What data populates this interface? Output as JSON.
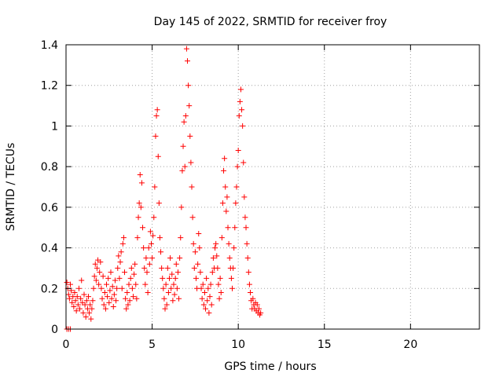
{
  "chart_data": {
    "type": "scatter",
    "title": "Day 145 of 2022, SRMTID for receiver froy",
    "xlabel": "GPS time / hours",
    "ylabel": "SRMTID / TECUs",
    "xlim": [
      0,
      24
    ],
    "ylim": [
      0,
      1.4
    ],
    "xticks": [
      0,
      5,
      10,
      15,
      20
    ],
    "xtick_labels": [
      "0",
      "5",
      "10",
      "15",
      "20"
    ],
    "yticks": [
      0,
      0.2,
      0.4,
      0.6,
      0.8,
      1.0,
      1.2,
      1.4
    ],
    "ytick_labels": [
      "0",
      "0.2",
      "0.4",
      "0.6",
      "0.8",
      "1",
      "1.2",
      "1.4"
    ],
    "grid": true,
    "marker": "+",
    "marker_color": "#ff0000",
    "series": [
      {
        "name": "SRMTID",
        "points": [
          [
            0.05,
            0.0
          ],
          [
            0.15,
            0.0
          ],
          [
            0.25,
            0.0
          ],
          [
            0.05,
            0.23
          ],
          [
            0.1,
            0.2
          ],
          [
            0.15,
            0.17
          ],
          [
            0.2,
            0.15
          ],
          [
            0.25,
            0.22
          ],
          [
            0.3,
            0.19
          ],
          [
            0.35,
            0.13
          ],
          [
            0.4,
            0.16
          ],
          [
            0.45,
            0.11
          ],
          [
            0.5,
            0.18
          ],
          [
            0.55,
            0.14
          ],
          [
            0.6,
            0.09
          ],
          [
            0.65,
            0.16
          ],
          [
            0.7,
            0.12
          ],
          [
            0.75,
            0.2
          ],
          [
            0.8,
            0.1
          ],
          [
            0.85,
            0.15
          ],
          [
            0.9,
            0.24
          ],
          [
            0.95,
            0.13
          ],
          [
            1.0,
            0.08
          ],
          [
            1.05,
            0.17
          ],
          [
            1.1,
            0.12
          ],
          [
            1.15,
            0.06
          ],
          [
            1.2,
            0.14
          ],
          [
            1.25,
            0.1
          ],
          [
            1.3,
            0.16
          ],
          [
            1.35,
            0.08
          ],
          [
            1.4,
            0.12
          ],
          [
            1.45,
            0.05
          ],
          [
            1.5,
            0.1
          ],
          [
            1.55,
            0.14
          ],
          [
            1.6,
            0.2
          ],
          [
            1.65,
            0.26
          ],
          [
            1.7,
            0.32
          ],
          [
            1.75,
            0.24
          ],
          [
            1.8,
            0.3
          ],
          [
            1.85,
            0.34
          ],
          [
            1.9,
            0.22
          ],
          [
            1.95,
            0.28
          ],
          [
            2.0,
            0.33
          ],
          [
            2.05,
            0.2
          ],
          [
            2.1,
            0.15
          ],
          [
            2.15,
            0.26
          ],
          [
            2.2,
            0.12
          ],
          [
            2.25,
            0.18
          ],
          [
            2.3,
            0.1
          ],
          [
            2.35,
            0.22
          ],
          [
            2.4,
            0.16
          ],
          [
            2.45,
            0.25
          ],
          [
            2.5,
            0.13
          ],
          [
            2.55,
            0.19
          ],
          [
            2.6,
            0.28
          ],
          [
            2.65,
            0.15
          ],
          [
            2.7,
            0.21
          ],
          [
            2.75,
            0.11
          ],
          [
            2.8,
            0.17
          ],
          [
            2.85,
            0.24
          ],
          [
            2.9,
            0.14
          ],
          [
            2.95,
            0.2
          ],
          [
            3.0,
            0.3
          ],
          [
            3.05,
            0.36
          ],
          [
            3.1,
            0.25
          ],
          [
            3.15,
            0.33
          ],
          [
            3.2,
            0.38
          ],
          [
            3.25,
            0.2
          ],
          [
            3.3,
            0.42
          ],
          [
            3.35,
            0.45
          ],
          [
            3.4,
            0.28
          ],
          [
            3.45,
            0.15
          ],
          [
            3.5,
            0.1
          ],
          [
            3.55,
            0.18
          ],
          [
            3.6,
            0.12
          ],
          [
            3.65,
            0.22
          ],
          [
            3.7,
            0.14
          ],
          [
            3.75,
            0.25
          ],
          [
            3.8,
            0.3
          ],
          [
            3.85,
            0.2
          ],
          [
            3.9,
            0.16
          ],
          [
            3.95,
            0.27
          ],
          [
            4.0,
            0.32
          ],
          [
            4.05,
            0.22
          ],
          [
            4.1,
            0.15
          ],
          [
            4.15,
            0.45
          ],
          [
            4.2,
            0.55
          ],
          [
            4.25,
            0.62
          ],
          [
            4.3,
            0.76
          ],
          [
            4.35,
            0.6
          ],
          [
            4.4,
            0.72
          ],
          [
            4.45,
            0.5
          ],
          [
            4.5,
            0.4
          ],
          [
            4.55,
            0.3
          ],
          [
            4.6,
            0.22
          ],
          [
            4.65,
            0.35
          ],
          [
            4.7,
            0.28
          ],
          [
            4.75,
            0.18
          ],
          [
            4.8,
            0.4
          ],
          [
            4.85,
            0.32
          ],
          [
            4.9,
            0.48
          ],
          [
            4.95,
            0.42
          ],
          [
            5.0,
            0.35
          ],
          [
            5.05,
            0.46
          ],
          [
            5.1,
            0.55
          ],
          [
            5.15,
            0.7
          ],
          [
            5.2,
            0.95
          ],
          [
            5.25,
            1.05
          ],
          [
            5.3,
            1.08
          ],
          [
            5.35,
            0.85
          ],
          [
            5.4,
            0.62
          ],
          [
            5.45,
            0.45
          ],
          [
            5.5,
            0.38
          ],
          [
            5.55,
            0.3
          ],
          [
            5.6,
            0.25
          ],
          [
            5.65,
            0.2
          ],
          [
            5.7,
            0.15
          ],
          [
            5.75,
            0.1
          ],
          [
            5.8,
            0.22
          ],
          [
            5.85,
            0.12
          ],
          [
            5.9,
            0.3
          ],
          [
            5.95,
            0.18
          ],
          [
            6.0,
            0.25
          ],
          [
            6.05,
            0.35
          ],
          [
            6.1,
            0.2
          ],
          [
            6.15,
            0.27
          ],
          [
            6.2,
            0.14
          ],
          [
            6.25,
            0.22
          ],
          [
            6.3,
            0.17
          ],
          [
            6.35,
            0.25
          ],
          [
            6.4,
            0.32
          ],
          [
            6.45,
            0.2
          ],
          [
            6.5,
            0.28
          ],
          [
            6.55,
            0.15
          ],
          [
            6.6,
            0.35
          ],
          [
            6.65,
            0.45
          ],
          [
            6.7,
            0.6
          ],
          [
            6.75,
            0.78
          ],
          [
            6.8,
            0.9
          ],
          [
            6.85,
            1.02
          ],
          [
            6.9,
            0.8
          ],
          [
            6.95,
            1.05
          ],
          [
            7.0,
            1.38
          ],
          [
            7.05,
            1.32
          ],
          [
            7.1,
            1.2
          ],
          [
            7.15,
            1.1
          ],
          [
            7.2,
            0.95
          ],
          [
            7.25,
            0.82
          ],
          [
            7.3,
            0.7
          ],
          [
            7.35,
            0.55
          ],
          [
            7.4,
            0.42
          ],
          [
            7.45,
            0.3
          ],
          [
            7.5,
            0.38
          ],
          [
            7.55,
            0.25
          ],
          [
            7.6,
            0.2
          ],
          [
            7.65,
            0.32
          ],
          [
            7.7,
            0.47
          ],
          [
            7.75,
            0.4
          ],
          [
            7.8,
            0.28
          ],
          [
            7.85,
            0.2
          ],
          [
            7.9,
            0.15
          ],
          [
            7.95,
            0.22
          ],
          [
            8.0,
            0.12
          ],
          [
            8.05,
            0.18
          ],
          [
            8.1,
            0.1
          ],
          [
            8.15,
            0.25
          ],
          [
            8.2,
            0.14
          ],
          [
            8.25,
            0.2
          ],
          [
            8.3,
            0.08
          ],
          [
            8.35,
            0.16
          ],
          [
            8.4,
            0.22
          ],
          [
            8.45,
            0.12
          ],
          [
            8.5,
            0.28
          ],
          [
            8.55,
            0.35
          ],
          [
            8.6,
            0.3
          ],
          [
            8.65,
            0.4
          ],
          [
            8.7,
            0.42
          ],
          [
            8.75,
            0.36
          ],
          [
            8.8,
            0.3
          ],
          [
            8.85,
            0.22
          ],
          [
            8.9,
            0.15
          ],
          [
            8.95,
            0.25
          ],
          [
            9.0,
            0.18
          ],
          [
            9.05,
            0.45
          ],
          [
            9.1,
            0.62
          ],
          [
            9.15,
            0.78
          ],
          [
            9.2,
            0.84
          ],
          [
            9.25,
            0.7
          ],
          [
            9.3,
            0.58
          ],
          [
            9.35,
            0.65
          ],
          [
            9.4,
            0.5
          ],
          [
            9.45,
            0.42
          ],
          [
            9.5,
            0.35
          ],
          [
            9.55,
            0.3
          ],
          [
            9.6,
            0.25
          ],
          [
            9.65,
            0.2
          ],
          [
            9.7,
            0.3
          ],
          [
            9.75,
            0.4
          ],
          [
            9.8,
            0.5
          ],
          [
            9.85,
            0.62
          ],
          [
            9.9,
            0.7
          ],
          [
            9.95,
            0.8
          ],
          [
            10.0,
            0.88
          ],
          [
            10.05,
            1.05
          ],
          [
            10.1,
            1.12
          ],
          [
            10.15,
            1.18
          ],
          [
            10.2,
            1.08
          ],
          [
            10.25,
            1.0
          ],
          [
            10.3,
            0.82
          ],
          [
            10.35,
            0.65
          ],
          [
            10.4,
            0.55
          ],
          [
            10.45,
            0.5
          ],
          [
            10.5,
            0.42
          ],
          [
            10.55,
            0.35
          ],
          [
            10.6,
            0.28
          ],
          [
            10.65,
            0.22
          ],
          [
            10.7,
            0.18
          ],
          [
            10.75,
            0.14
          ],
          [
            10.8,
            0.1
          ],
          [
            10.85,
            0.15
          ],
          [
            10.9,
            0.12
          ],
          [
            10.95,
            0.1
          ],
          [
            11.0,
            0.13
          ],
          [
            11.05,
            0.09
          ],
          [
            11.1,
            0.12
          ],
          [
            11.15,
            0.08
          ],
          [
            11.2,
            0.1
          ],
          [
            11.25,
            0.07
          ],
          [
            11.3,
            0.08
          ]
        ]
      }
    ]
  }
}
